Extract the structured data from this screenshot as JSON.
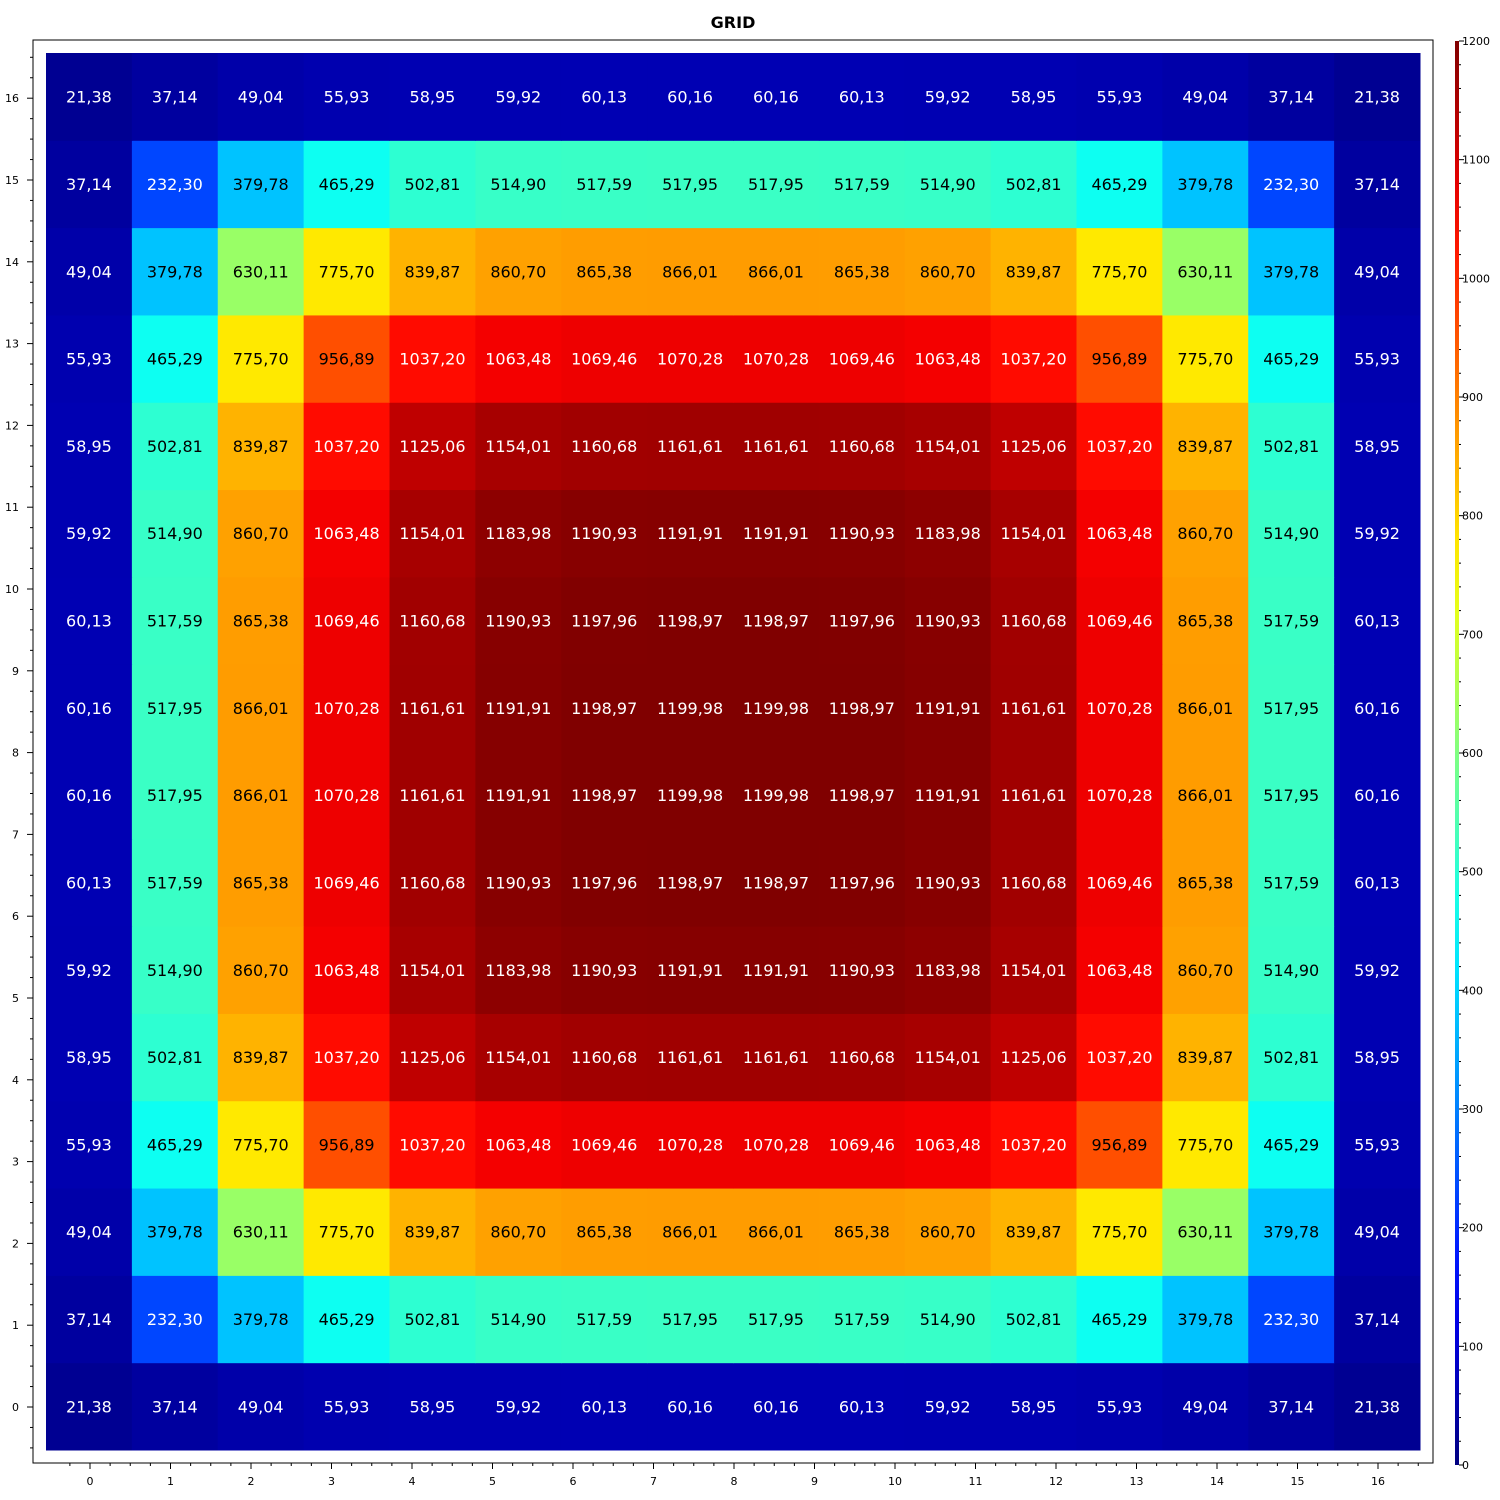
{
  "chart_data": {
    "type": "heatmap",
    "title": "GRID",
    "xlabel": "",
    "ylabel": "",
    "x": [
      0,
      1,
      2,
      3,
      4,
      5,
      6,
      7,
      8,
      9,
      10,
      11,
      12,
      13,
      14,
      15,
      16
    ],
    "y": [
      0,
      1,
      2,
      3,
      4,
      5,
      6,
      7,
      8,
      9,
      10,
      11,
      12,
      13,
      14,
      15,
      16
    ],
    "x_tick_labels": [
      "0",
      "1",
      "2",
      "3",
      "4",
      "5",
      "6",
      "7",
      "8",
      "9",
      "10",
      "11",
      "12",
      "13",
      "14",
      "15",
      "16"
    ],
    "y_tick_labels": [
      "0",
      "1",
      "2",
      "3",
      "4",
      "5",
      "6",
      "7",
      "8",
      "9",
      "10",
      "11",
      "12",
      "13",
      "14",
      "15",
      "16"
    ],
    "colorbar": {
      "min": 0,
      "max": 1200,
      "ticks": [
        0,
        100,
        200,
        300,
        400,
        500,
        600,
        700,
        800,
        900,
        1000,
        1100,
        1200
      ],
      "tick_labels": [
        "0",
        "100",
        "200",
        "300",
        "400",
        "500",
        "600",
        "700",
        "800",
        "900",
        "1000",
        "1100",
        "1200"
      ],
      "colormap": "jet",
      "placement": "right"
    },
    "grid": false,
    "z": [
      [
        "21,38",
        "37,14",
        "49,04",
        "55,93",
        "58,95",
        "59,92",
        "60,13",
        "60,16",
        "60,16",
        "60,13",
        "59,92",
        "58,95",
        "55,93",
        "49,04",
        "37,14",
        "21,38"
      ],
      [
        "37,14",
        "232,30",
        "379,78",
        "465,29",
        "502,81",
        "514,90",
        "517,59",
        "517,95",
        "517,95",
        "517,59",
        "514,90",
        "502,81",
        "465,29",
        "379,78",
        "232,30",
        "37,14"
      ],
      [
        "49,04",
        "379,78",
        "630,11",
        "775,70",
        "839,87",
        "860,70",
        "865,38",
        "866,01",
        "866,01",
        "865,38",
        "860,70",
        "839,87",
        "775,70",
        "630,11",
        "379,78",
        "49,04"
      ],
      [
        "55,93",
        "465,29",
        "775,70",
        "956,89",
        "1037,20",
        "1063,48",
        "1069,46",
        "1070,28",
        "1070,28",
        "1069,46",
        "1063,48",
        "1037,20",
        "956,89",
        "775,70",
        "465,29",
        "55,93"
      ],
      [
        "58,95",
        "502,81",
        "839,87",
        "1037,20",
        "1125,06",
        "1154,01",
        "1160,68",
        "1161,61",
        "1161,61",
        "1160,68",
        "1154,01",
        "1125,06",
        "1037,20",
        "839,87",
        "502,81",
        "58,95"
      ],
      [
        "59,92",
        "514,90",
        "860,70",
        "1063,48",
        "1154,01",
        "1183,98",
        "1190,93",
        "1191,91",
        "1191,91",
        "1190,93",
        "1183,98",
        "1154,01",
        "1063,48",
        "860,70",
        "514,90",
        "59,92"
      ],
      [
        "60,13",
        "517,59",
        "865,38",
        "1069,46",
        "1160,68",
        "1190,93",
        "1197,96",
        "1198,97",
        "1198,97",
        "1197,96",
        "1190,93",
        "1160,68",
        "1069,46",
        "865,38",
        "517,59",
        "60,13"
      ],
      [
        "60,16",
        "517,95",
        "866,01",
        "1070,28",
        "1161,61",
        "1191,91",
        "1198,97",
        "1199,98",
        "1199,98",
        "1198,97",
        "1191,91",
        "1161,61",
        "1070,28",
        "866,01",
        "517,95",
        "60,16"
      ],
      [
        "60,16",
        "517,95",
        "866,01",
        "1070,28",
        "1161,61",
        "1191,91",
        "1198,97",
        "1199,98",
        "1199,98",
        "1198,97",
        "1191,91",
        "1161,61",
        "1070,28",
        "866,01",
        "517,95",
        "60,16"
      ],
      [
        "60,13",
        "517,59",
        "865,38",
        "1069,46",
        "1160,68",
        "1190,93",
        "1197,96",
        "1198,97",
        "1198,97",
        "1197,96",
        "1190,93",
        "1160,68",
        "1069,46",
        "865,38",
        "517,59",
        "60,13"
      ],
      [
        "59,92",
        "514,90",
        "860,70",
        "1063,48",
        "1154,01",
        "1183,98",
        "1190,93",
        "1191,91",
        "1191,91",
        "1190,93",
        "1183,98",
        "1154,01",
        "1063,48",
        "860,70",
        "514,90",
        "59,92"
      ],
      [
        "58,95",
        "502,81",
        "839,87",
        "1037,20",
        "1125,06",
        "1154,01",
        "1160,68",
        "1161,61",
        "1161,61",
        "1160,68",
        "1154,01",
        "1125,06",
        "1037,20",
        "839,87",
        "502,81",
        "58,95"
      ],
      [
        "55,93",
        "465,29",
        "775,70",
        "956,89",
        "1037,20",
        "1063,48",
        "1069,46",
        "1070,28",
        "1070,28",
        "1069,46",
        "1063,48",
        "1037,20",
        "956,89",
        "775,70",
        "465,29",
        "55,93"
      ],
      [
        "49,04",
        "379,78",
        "630,11",
        "775,70",
        "839,87",
        "860,70",
        "865,38",
        "866,01",
        "866,01",
        "865,38",
        "860,70",
        "839,87",
        "775,70",
        "630,11",
        "379,78",
        "49,04"
      ],
      [
        "37,14",
        "232,30",
        "379,78",
        "465,29",
        "502,81",
        "514,90",
        "517,59",
        "517,95",
        "517,95",
        "517,59",
        "514,90",
        "502,81",
        "465,29",
        "379,78",
        "232,30",
        "37,14"
      ],
      [
        "21,38",
        "37,14",
        "49,04",
        "55,93",
        "58,95",
        "59,92",
        "60,13",
        "60,16",
        "60,16",
        "60,13",
        "59,92",
        "58,95",
        "55,93",
        "49,04",
        "37,14",
        "21,38"
      ]
    ]
  }
}
